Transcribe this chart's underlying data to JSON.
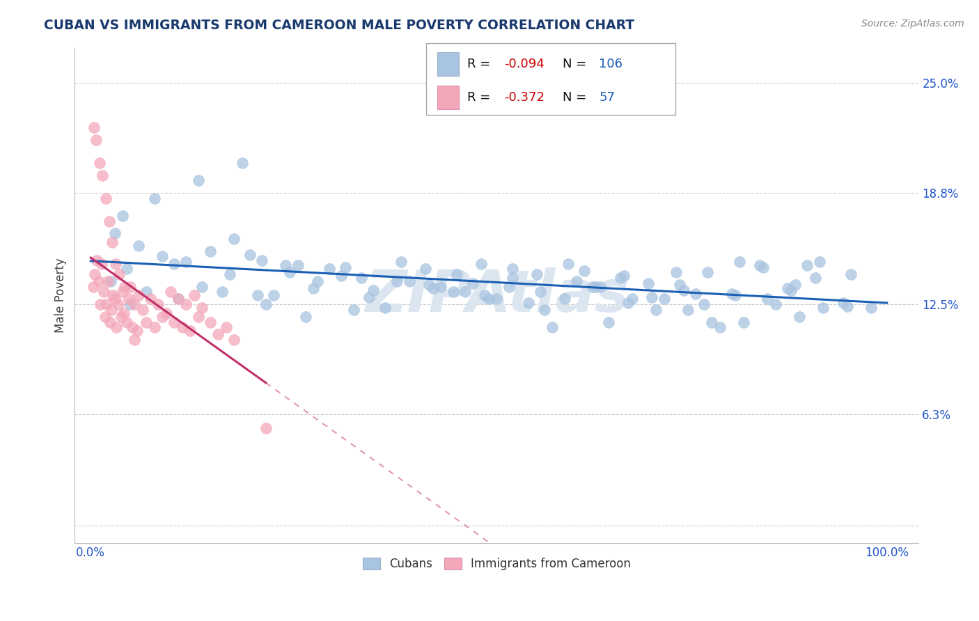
{
  "title": "CUBAN VS IMMIGRANTS FROM CAMEROON MALE POVERTY CORRELATION CHART",
  "source": "Source: ZipAtlas.com",
  "ylabel": "Male Poverty",
  "x_tick_labels": [
    "0.0%",
    "100.0%"
  ],
  "y_ticks": [
    0.0,
    6.3,
    12.5,
    18.8,
    25.0
  ],
  "y_tick_labels": [
    "",
    "6.3%",
    "12.5%",
    "18.8%",
    "25.0%"
  ],
  "xlim": [
    -2,
    104
  ],
  "ylim": [
    -1,
    27
  ],
  "cubans_color": "#a8c4e0",
  "cameroon_color": "#f4a7b9",
  "trend_blue": "#1a5fb4",
  "trend_pink": "#c0306a",
  "watermark_color": "#dce6f0",
  "background_color": "#ffffff",
  "grid_color": "#cccccc",
  "title_color": "#1a3a6e",
  "tick_color": "#2255cc",
  "cubans_x": [
    2.5,
    4.5,
    7.0,
    10.5,
    14.0,
    17.5,
    21.0,
    24.5,
    28.0,
    31.5,
    35.0,
    38.5,
    42.0,
    45.5,
    49.0,
    52.5,
    56.0,
    59.5,
    63.0,
    66.5,
    70.0,
    73.5,
    77.0,
    80.5,
    84.0,
    87.5,
    91.0,
    94.5,
    98.0,
    3.0,
    6.0,
    9.0,
    12.0,
    15.0,
    18.0,
    21.5,
    25.0,
    28.5,
    32.0,
    35.5,
    39.0,
    42.5,
    46.0,
    49.5,
    53.0,
    56.5,
    60.0,
    63.5,
    67.0,
    70.5,
    74.0,
    77.5,
    81.0,
    84.5,
    88.0,
    91.5,
    95.0,
    5.0,
    11.0,
    16.5,
    22.0,
    27.0,
    33.0,
    44.0,
    50.0,
    57.0,
    65.0,
    72.0,
    79.0,
    86.0,
    4.0,
    8.0,
    13.5,
    19.0,
    30.0,
    40.0,
    47.0,
    55.0,
    61.0,
    68.0,
    75.0,
    82.0,
    89.0,
    23.0,
    37.0,
    51.0,
    58.0,
    64.0,
    71.0,
    78.0,
    85.0,
    92.0,
    26.0,
    43.0,
    53.0,
    67.5,
    74.5,
    81.5,
    88.5,
    95.5,
    20.0,
    34.0,
    48.0,
    62.0,
    76.0,
    90.0
  ],
  "cubans_y": [
    13.8,
    14.5,
    13.2,
    14.8,
    13.5,
    14.2,
    13.0,
    14.7,
    13.4,
    14.1,
    12.9,
    13.8,
    14.5,
    13.2,
    14.8,
    13.5,
    14.2,
    12.8,
    13.5,
    14.0,
    13.7,
    14.3,
    12.5,
    13.1,
    14.7,
    13.4,
    14.0,
    12.6,
    12.3,
    16.5,
    15.8,
    15.2,
    14.9,
    15.5,
    16.2,
    15.0,
    14.3,
    13.8,
    14.6,
    13.3,
    14.9,
    13.6,
    14.2,
    13.0,
    14.5,
    13.2,
    14.8,
    13.5,
    14.1,
    12.9,
    13.6,
    14.3,
    13.0,
    14.6,
    13.3,
    14.9,
    12.4,
    12.5,
    12.8,
    13.2,
    12.5,
    11.8,
    12.2,
    13.5,
    12.8,
    12.2,
    11.5,
    12.8,
    11.2,
    12.5,
    17.5,
    18.5,
    19.5,
    20.5,
    14.5,
    13.8,
    13.2,
    12.6,
    13.8,
    12.8,
    12.2,
    11.5,
    11.8,
    13.0,
    12.3,
    12.8,
    11.2,
    13.5,
    12.2,
    11.5,
    12.8,
    12.3,
    14.7,
    13.4,
    14.0,
    12.6,
    13.3,
    14.9,
    13.6,
    14.2,
    15.3,
    14.0,
    13.7,
    14.4,
    13.1,
    14.7
  ],
  "cameroon_x": [
    0.3,
    0.5,
    0.8,
    1.0,
    1.2,
    1.4,
    1.6,
    1.8,
    2.0,
    2.2,
    2.4,
    2.6,
    2.8,
    3.0,
    3.2,
    3.5,
    3.8,
    4.0,
    4.2,
    4.5,
    4.8,
    5.0,
    5.2,
    5.5,
    5.8,
    6.0,
    6.5,
    7.0,
    7.5,
    8.0,
    8.5,
    9.0,
    9.5,
    10.0,
    10.5,
    11.0,
    11.5,
    12.0,
    12.5,
    13.0,
    13.5,
    14.0,
    15.0,
    16.0,
    17.0,
    18.0,
    0.4,
    0.7,
    1.1,
    1.5,
    1.9,
    2.3,
    2.7,
    3.1,
    3.6,
    4.3,
    5.5,
    22.0
  ],
  "cameroon_y": [
    13.5,
    14.2,
    15.0,
    13.8,
    12.5,
    14.8,
    13.2,
    11.8,
    12.5,
    13.8,
    11.5,
    12.2,
    13.0,
    12.8,
    11.2,
    12.5,
    11.8,
    13.2,
    12.0,
    11.5,
    12.8,
    13.5,
    11.2,
    12.5,
    11.0,
    13.0,
    12.2,
    11.5,
    12.8,
    11.2,
    12.5,
    11.8,
    12.0,
    13.2,
    11.5,
    12.8,
    11.2,
    12.5,
    11.0,
    13.0,
    11.8,
    12.3,
    11.5,
    10.8,
    11.2,
    10.5,
    22.5,
    21.8,
    20.5,
    19.8,
    18.5,
    17.2,
    16.0,
    14.8,
    14.2,
    13.5,
    10.5,
    5.5
  ]
}
